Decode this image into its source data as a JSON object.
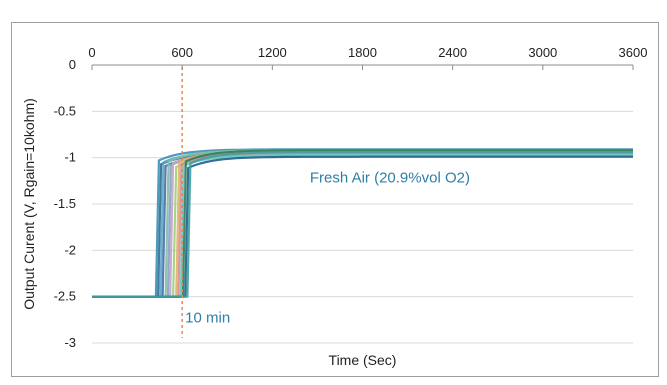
{
  "chart_data": {
    "type": "line",
    "xlabel": "Time (Sec)",
    "ylabel": "Output Curent (V, Rgain=10kohm)",
    "xlim": [
      0,
      3600
    ],
    "ylim": [
      -3,
      0
    ],
    "x_ticks": [
      0,
      600,
      1200,
      1800,
      2400,
      3000,
      3600
    ],
    "y_ticks": [
      0,
      -0.5,
      -1,
      -1.5,
      -2,
      -2.5,
      -3
    ],
    "x_ticks_position": "top",
    "grid": "horizontal",
    "annotations": [
      {
        "text": "Fresh Air (20.9%vol O2)",
        "x": 1450,
        "y": -1.27,
        "color": "#2e7fa6"
      },
      {
        "text": "10 min",
        "x": 620,
        "y": -2.78,
        "color": "#2e7fa6"
      }
    ],
    "reference_line": {
      "x": 600,
      "style": "dashed",
      "color": "#e8874a"
    },
    "baseline_level": -2.5,
    "series": [
      {
        "step_x": 425,
        "plateau": -0.91,
        "color": "#3a8fb7"
      },
      {
        "step_x": 440,
        "plateau": -0.95,
        "color": "#2e6e8e"
      },
      {
        "step_x": 455,
        "plateau": -0.93,
        "color": "#5aa9c9"
      },
      {
        "step_x": 470,
        "plateau": -0.97,
        "color": "#4b6aa8"
      },
      {
        "step_x": 490,
        "plateau": -0.92,
        "color": "#7fbfa5"
      },
      {
        "step_x": 505,
        "plateau": -0.96,
        "color": "#8aa0c8"
      },
      {
        "step_x": 520,
        "plateau": -0.94,
        "color": "#c5a3c9"
      },
      {
        "step_x": 540,
        "plateau": -0.98,
        "color": "#9fcf7c"
      },
      {
        "step_x": 560,
        "plateau": -0.93,
        "color": "#e0b06a"
      },
      {
        "step_x": 575,
        "plateau": -0.95,
        "color": "#d98c8c"
      },
      {
        "step_x": 590,
        "plateau": -0.97,
        "color": "#6cc5c9"
      },
      {
        "step_x": 605,
        "plateau": -0.92,
        "color": "#2f7d5a"
      },
      {
        "step_x": 620,
        "plateau": -0.99,
        "color": "#1f5f8a"
      },
      {
        "step_x": 635,
        "plateau": -0.94,
        "color": "#3fa0a0"
      }
    ]
  }
}
